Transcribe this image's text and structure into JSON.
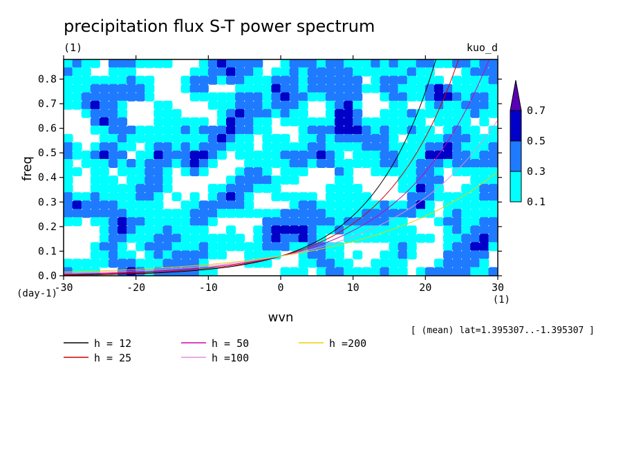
{
  "chart_data": {
    "type": "heatmap",
    "title": "precipitation flux S-T power spectrum",
    "subtitle_left": "(1)",
    "subtitle_right": "kuo_d",
    "xlabel": "wvn",
    "ylabel": "freq",
    "x_unit": "(1)",
    "y_unit": "(day-1)",
    "xlim": [
      -30,
      30
    ],
    "ylim": [
      0,
      0.88
    ],
    "xticks": [
      -30,
      -20,
      -10,
      0,
      10,
      20,
      30
    ],
    "xtick_labels": [
      "-30",
      "-20",
      "-10",
      "0",
      "10",
      "20",
      "30"
    ],
    "yticks": [
      0,
      0.1,
      0.2,
      0.3,
      0.4,
      0.5,
      0.6,
      0.7,
      0.8
    ],
    "ytick_labels": [
      "0.0",
      "0.1",
      "0.2",
      "0.3",
      "0.4",
      "0.5",
      "0.6",
      "0.7",
      "0.8"
    ],
    "annotation": "[ (mean) lat=1.395307..-1.395307 ]",
    "colorbar": {
      "levels": [
        0.1,
        0.3,
        0.5,
        0.7
      ],
      "level_labels": [
        "0.1",
        "0.3",
        "0.5",
        "0.7"
      ],
      "colors": [
        "#00ffff",
        "#1e7bff",
        "#0000c8",
        "#5a00b4"
      ]
    },
    "series": [
      {
        "name": "h = 12",
        "h": 12,
        "color": "#000000"
      },
      {
        "name": "h = 25",
        "h": 25,
        "color": "#d00000"
      },
      {
        "name": "h = 50",
        "h": 50,
        "color": "#d000b0"
      },
      {
        "name": "h =100",
        "h": 100,
        "color": "#e090e0"
      },
      {
        "name": "h =200",
        "h": 200,
        "color": "#e8d000"
      }
    ]
  }
}
